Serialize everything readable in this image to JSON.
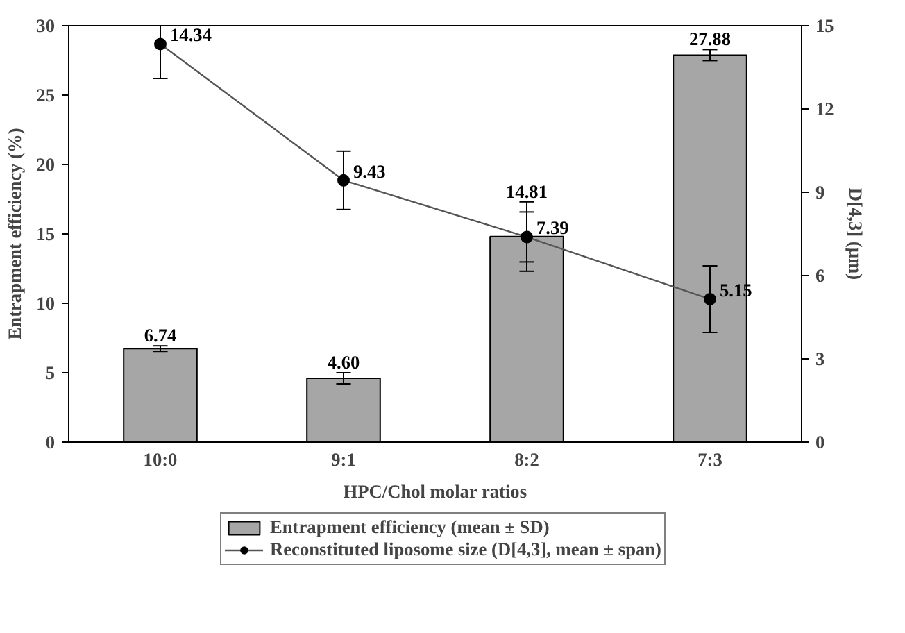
{
  "chart_data": {
    "type": "bar",
    "xlabel": "HPC/Chol molar ratios",
    "ylabel": "Entrapment efficiency (%)",
    "y2label": "D[4,3] (µm)",
    "categories": [
      "10:0",
      "9:1",
      "8:2",
      "7:3"
    ],
    "ylim": [
      0,
      30
    ],
    "yticks": [
      0,
      5,
      10,
      15,
      20,
      25,
      30
    ],
    "y2lim": [
      0,
      15
    ],
    "y2ticks": [
      0,
      3,
      6,
      9,
      12,
      15
    ],
    "series": [
      {
        "name": "Entrapment efficiency (mean ± SD)",
        "color": "#a6a6a6",
        "values": [
          6.74,
          4.6,
          14.81,
          27.88
        ],
        "errors": [
          0.2,
          0.4,
          2.5,
          0.4
        ],
        "value_labels": [
          "6.74",
          "4.60",
          "14.81",
          "27.88"
        ]
      },
      {
        "name": "Reconstituted liposome size (D[4,3], mean ± span)",
        "type": "line",
        "axis": "y2",
        "color": "#000000",
        "marker": "circle",
        "values": [
          14.34,
          9.43,
          7.39,
          5.15
        ],
        "errors": [
          [
            13.1,
            15.0
          ],
          1.05,
          0.9,
          1.2
        ],
        "value_labels": [
          "14.34",
          "9.43",
          "7.39",
          "5.15"
        ]
      }
    ],
    "grid": false,
    "legend": "bottom"
  }
}
